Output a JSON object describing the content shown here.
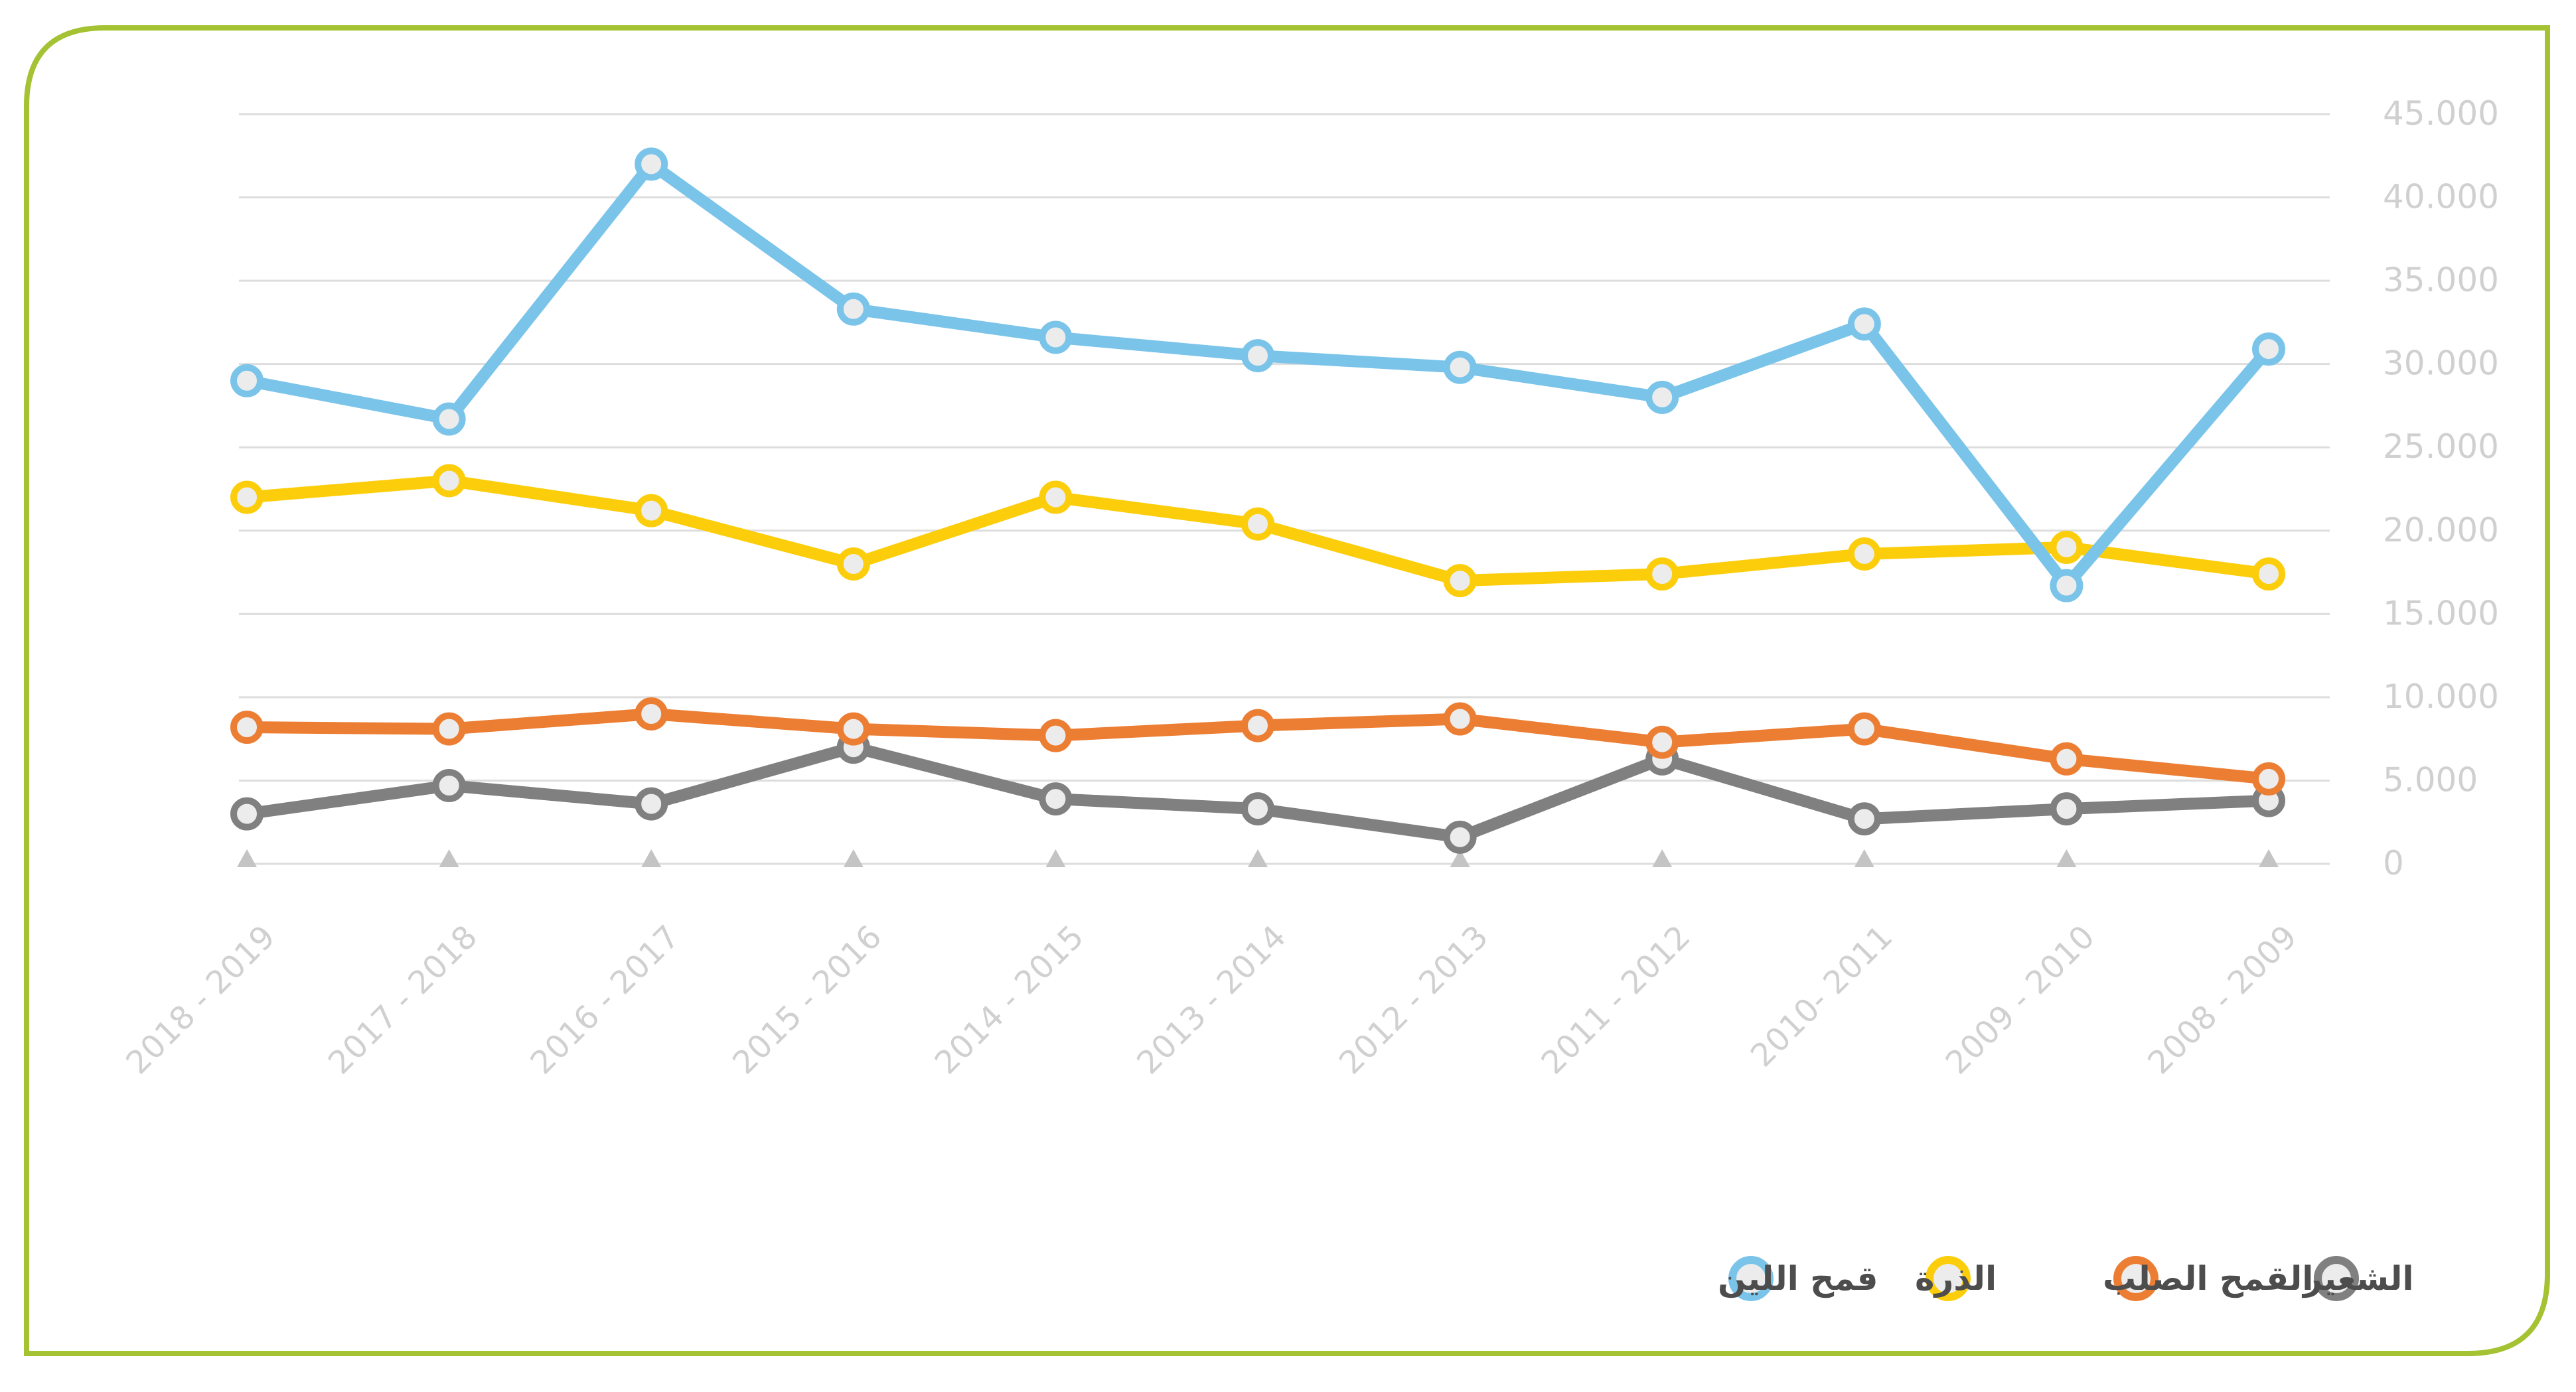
{
  "chart_data": {
    "type": "line",
    "categories": [
      "2018 - 2019",
      "2017 - 2018",
      "2016 - 2017",
      "2015 - 2016",
      "2014 - 2015",
      "2013 - 2014",
      "2012 - 2013",
      "2011 - 2012",
      "2010- 2011",
      "2009 - 2010",
      "2008 - 2009"
    ],
    "series": [
      {
        "name": "قمح اللين",
        "color": "#7ac4ea",
        "values": [
          29000,
          26700,
          42000,
          33300,
          31600,
          30500,
          29800,
          28000,
          32400,
          16700,
          30900
        ]
      },
      {
        "name": "الذرة",
        "color": "#fccd0b",
        "values": [
          22000,
          23000,
          21200,
          18000,
          22000,
          20400,
          17000,
          17400,
          18600,
          19000,
          17400
        ]
      },
      {
        "name": "القمح الصلب",
        "color": "#ec7e34",
        "values": [
          8200,
          8100,
          9000,
          8100,
          7700,
          8300,
          8700,
          7300,
          8100,
          6300,
          5100
        ]
      },
      {
        "name": "الشعير",
        "color": "#808080",
        "values": [
          3000,
          4700,
          3600,
          7000,
          3900,
          3300,
          1600,
          6300,
          2700,
          3300,
          3800
        ]
      }
    ],
    "yticks": [
      "0",
      "5.000",
      "10.000",
      "15.000",
      "20.000",
      "25.000",
      "30.000",
      "35.000",
      "40.000",
      "45.000"
    ],
    "ylim": [
      0,
      45000
    ],
    "grid": true,
    "legend_position": "bottom-right",
    "title": "",
    "xlabel": "",
    "ylabel": ""
  },
  "colors": {
    "frame": "#a4c232",
    "grid": "#dddddd",
    "tick_label": "#d0d0d0",
    "marker_fill": "#ececec",
    "marker_triangle": "#c4c4c4",
    "legend_text": "#4d4d4d"
  }
}
